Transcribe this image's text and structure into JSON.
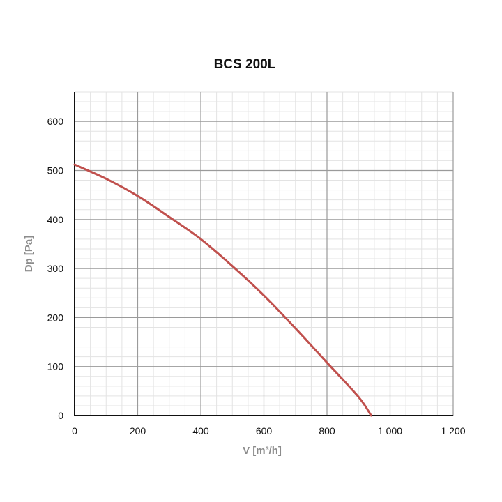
{
  "chart_data": {
    "type": "line",
    "title": "BCS 200L",
    "xlabel": "V [m³/h]",
    "ylabel": "Dp [Pa]",
    "xlim": [
      0,
      1200
    ],
    "ylim": [
      0,
      660
    ],
    "x_ticks": [
      0,
      200,
      400,
      600,
      800,
      1000,
      1200
    ],
    "x_tick_labels": [
      "0",
      "200",
      "400",
      "600",
      "800",
      "1 000",
      "1 200"
    ],
    "y_ticks": [
      0,
      100,
      200,
      300,
      400,
      500,
      600
    ],
    "y_tick_labels": [
      "0",
      "100",
      "200",
      "300",
      "400",
      "500",
      "600"
    ],
    "grid": true,
    "legend": "none",
    "series": [
      {
        "color": "#c0504d",
        "x": [
          0,
          100,
          200,
          300,
          400,
          500,
          600,
          700,
          800,
          900,
          940
        ],
        "y": [
          512,
          483,
          448,
          405,
          360,
          305,
          245,
          178,
          108,
          38,
          0
        ]
      }
    ],
    "colors": {
      "major_grid": "#9a9a9a",
      "minor_grid": "#e3e3e3",
      "axis": "#111111",
      "curve": "#c0504d"
    }
  }
}
